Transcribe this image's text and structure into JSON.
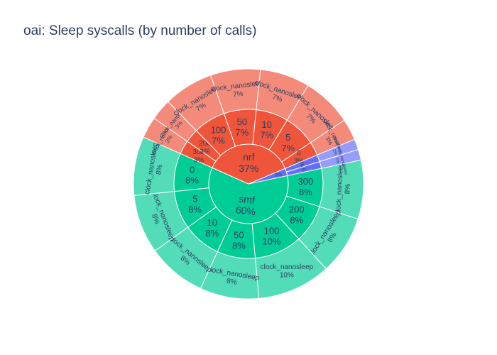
{
  "title": "oai: Sleep syscalls (by number of calls)",
  "chart_data": {
    "type": "sunburst",
    "title": "oai: Sleep syscalls (by number of calls)",
    "roots": [
      {
        "name": "smf",
        "percent_label": "60%",
        "color": "#00cc96",
        "value": 60,
        "children": [
          {
            "name": "300",
            "percent_label": "8%",
            "value": 8,
            "leaf": "clock_nanosleep",
            "leaf_percent_label": "8%"
          },
          {
            "name": "200",
            "percent_label": "8%",
            "value": 8,
            "leaf": "clock_nanosleep",
            "leaf_percent_label": "8%"
          },
          {
            "name": "100",
            "percent_label": "10%",
            "value": 10,
            "leaf": "clock_nanosleep",
            "leaf_percent_label": "10%"
          },
          {
            "name": "50",
            "percent_label": "8%",
            "value": 8,
            "leaf": "clock_nanosleep",
            "leaf_percent_label": "8%"
          },
          {
            "name": "10",
            "percent_label": "8%",
            "value": 8,
            "leaf": "clock_nanosleep",
            "leaf_percent_label": "8%"
          },
          {
            "name": "5",
            "percent_label": "8%",
            "value": 8,
            "leaf": "clock_nanosleep",
            "leaf_percent_label": "8%"
          },
          {
            "name": "0",
            "percent_label": "8%",
            "value": 8,
            "leaf": "clock_nanosleep",
            "leaf_percent_label": "8%"
          }
        ]
      },
      {
        "name": "nrf",
        "percent_label": "37%",
        "color": "#ef553b",
        "value": 37,
        "children": [
          {
            "name": "300",
            "percent_label": "3%",
            "value": 3,
            "leaf": "clock_nanosleep",
            "leaf_percent_label": "3%"
          },
          {
            "name": "200",
            "percent_label": "3%",
            "value": 3,
            "leaf": "clock_nanosleep",
            "leaf_percent_label": "3%"
          },
          {
            "name": "100",
            "percent_label": "7%",
            "value": 7,
            "leaf": "clock_nanosleep",
            "leaf_percent_label": "7%"
          },
          {
            "name": "50",
            "percent_label": "7%",
            "value": 7,
            "leaf": "clock_nanosleep",
            "leaf_percent_label": "7%"
          },
          {
            "name": "10",
            "percent_label": "7%",
            "value": 7,
            "leaf": "clock_nanosleep",
            "leaf_percent_label": "7%"
          },
          {
            "name": "5",
            "percent_label": "7%",
            "value": 7,
            "leaf": "clock_nanosleep",
            "leaf_percent_label": "7%"
          },
          {
            "name": "0",
            "percent_label": "3%",
            "value": 3,
            "leaf": "clock_nanosleep",
            "leaf_percent_label": "3%"
          }
        ]
      },
      {
        "name": "",
        "percent_label": "3%",
        "color": "#636efa",
        "value": 3,
        "children": [
          {
            "name": "50",
            "percent_label": "",
            "value": 1.5,
            "leaf": "clock_nanosleep",
            "leaf_percent_label": "2%"
          },
          {
            "name": "0",
            "percent_label": "",
            "value": 1.5,
            "leaf": "clock_nanosleep",
            "leaf_percent_label": "2%"
          }
        ]
      }
    ]
  }
}
